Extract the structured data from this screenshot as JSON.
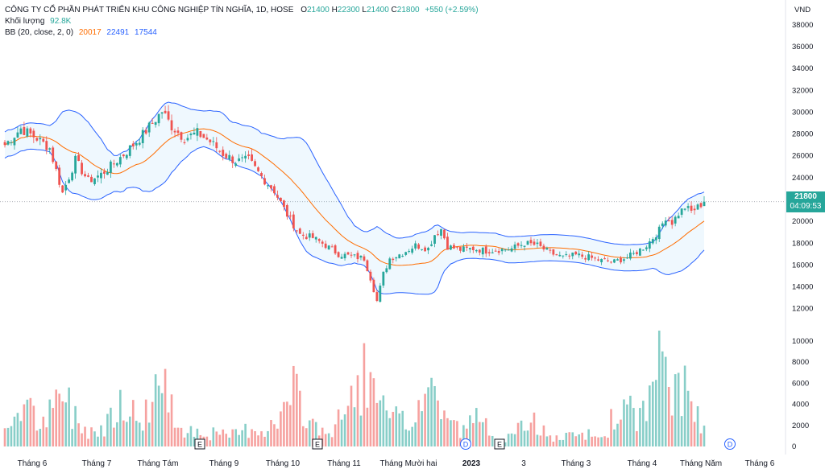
{
  "header": {
    "title": "CÔNG TY CỔ PHẦN PHÁT TRIỂN KHU CÔNG NGHIỆP TÍN NGHĨA, 1D, HOSE",
    "open_label": "O",
    "open": "21400",
    "high_label": "H",
    "high": "22300",
    "low_label": "L",
    "low": "21400",
    "close_label": "C",
    "close": "21800",
    "change": "+550 (+2.59%)",
    "volume_label": "Khối lượng",
    "volume": "92.8K",
    "bb_label": "BB (20, close, 2, 0)",
    "bb_mid": "20017",
    "bb_upper": "22491",
    "bb_lower": "17544"
  },
  "price_tag": {
    "price": "21800",
    "countdown": "04:09:53"
  },
  "colors": {
    "up": "#26a69a",
    "down": "#ef5350",
    "bb_band": "#2962ff",
    "bb_mid": "#ff6d00",
    "fill": "#2196f3"
  },
  "chart_data": {
    "type": "candlestick",
    "currency": "VND",
    "x_labels": [
      "Tháng 6",
      "Tháng 7",
      "Tháng Tám",
      "Tháng 9",
      "Tháng 10",
      "Tháng 11",
      "Tháng Mười hai",
      "2023",
      "3",
      "Tháng 3",
      "Tháng 4",
      "Tháng Năm",
      "Tháng 6"
    ],
    "price_ticks": [
      12000,
      14000,
      16000,
      18000,
      20000,
      22000,
      24000,
      26000,
      28000,
      30000,
      32000,
      34000,
      36000,
      38000
    ],
    "volume_ticks": [
      0,
      2000,
      4000,
      6000,
      8000,
      10000
    ],
    "price_ylim": [
      10800,
      38800
    ],
    "volume_ylim": [
      0,
      10300
    ],
    "event_markers": [
      {
        "label": "E",
        "month": "Tháng Tám"
      },
      {
        "label": "E",
        "month": "Tháng 10"
      },
      {
        "label": "D",
        "month": "Tháng Mười hai"
      },
      {
        "label": "E",
        "month": "2023"
      },
      {
        "label": "D",
        "month": "Tháng Năm"
      }
    ],
    "close_knots": [
      [
        0,
        27000
      ],
      [
        5,
        28500
      ],
      [
        10,
        27600
      ],
      [
        14,
        26700
      ],
      [
        18,
        22600
      ],
      [
        22,
        25600
      ],
      [
        26,
        23700
      ],
      [
        30,
        24300
      ],
      [
        34,
        25300
      ],
      [
        38,
        26400
      ],
      [
        42,
        27600
      ],
      [
        46,
        29000
      ],
      [
        49,
        30100
      ],
      [
        52,
        28700
      ],
      [
        56,
        27600
      ],
      [
        60,
        28100
      ],
      [
        64,
        27300
      ],
      [
        68,
        26200
      ],
      [
        72,
        25500
      ],
      [
        76,
        25600
      ],
      [
        80,
        24100
      ],
      [
        84,
        22800
      ],
      [
        88,
        20600
      ],
      [
        92,
        18800
      ],
      [
        96,
        18500
      ],
      [
        100,
        17800
      ],
      [
        104,
        17000
      ],
      [
        108,
        16800
      ],
      [
        112,
        16600
      ],
      [
        114,
        14800
      ],
      [
        116,
        12700
      ],
      [
        118,
        15200
      ],
      [
        120,
        16600
      ],
      [
        124,
        17100
      ],
      [
        128,
        17800
      ],
      [
        132,
        17500
      ],
      [
        134,
        18800
      ],
      [
        136,
        19300
      ],
      [
        138,
        17700
      ],
      [
        142,
        17400
      ],
      [
        146,
        17500
      ],
      [
        150,
        17300
      ],
      [
        154,
        17400
      ],
      [
        158,
        17500
      ],
      [
        162,
        18000
      ],
      [
        166,
        17800
      ],
      [
        170,
        17100
      ],
      [
        174,
        16700
      ],
      [
        178,
        16900
      ],
      [
        182,
        16700
      ],
      [
        186,
        16400
      ],
      [
        190,
        16300
      ],
      [
        194,
        16700
      ],
      [
        196,
        17000
      ],
      [
        200,
        17800
      ],
      [
        204,
        19200
      ],
      [
        206,
        20400
      ],
      [
        208,
        19900
      ],
      [
        210,
        20700
      ],
      [
        212,
        21300
      ],
      [
        214,
        20900
      ],
      [
        216,
        21300
      ],
      [
        218,
        21800
      ]
    ],
    "volume_knots": [
      [
        0,
        1500
      ],
      [
        5,
        5200
      ],
      [
        12,
        2400
      ],
      [
        18,
        6200
      ],
      [
        24,
        2200
      ],
      [
        30,
        1800
      ],
      [
        36,
        6500
      ],
      [
        42,
        2500
      ],
      [
        48,
        7700
      ],
      [
        54,
        2700
      ],
      [
        60,
        1800
      ],
      [
        70,
        1200
      ],
      [
        76,
        2100
      ],
      [
        84,
        2300
      ],
      [
        90,
        6200
      ],
      [
        96,
        2600
      ],
      [
        102,
        1600
      ],
      [
        108,
        5400
      ],
      [
        112,
        8700
      ],
      [
        116,
        4800
      ],
      [
        120,
        3400
      ],
      [
        126,
        2500
      ],
      [
        132,
        7200
      ],
      [
        136,
        4700
      ],
      [
        142,
        1700
      ],
      [
        148,
        3500
      ],
      [
        152,
        1300
      ],
      [
        158,
        1000
      ],
      [
        164,
        3400
      ],
      [
        170,
        900
      ],
      [
        176,
        1100
      ],
      [
        182,
        1400
      ],
      [
        186,
        1000
      ],
      [
        192,
        4800
      ],
      [
        198,
        3200
      ],
      [
        204,
        9000
      ],
      [
        208,
        6900
      ],
      [
        212,
        6200
      ],
      [
        216,
        3900
      ],
      [
        218,
        2200
      ]
    ]
  }
}
